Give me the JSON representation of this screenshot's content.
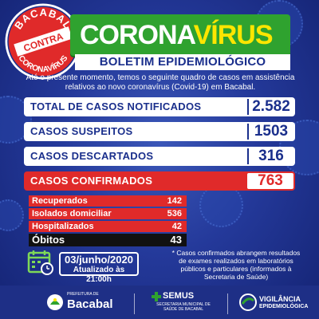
{
  "seal": {
    "top": "BACABAL",
    "middle": "CONTRA",
    "bottom": "CORONAVÍRUS"
  },
  "header": {
    "title_part1": "CORONA",
    "title_part2": "VÍRUS",
    "subtitle": "BOLETIM EPIDEMIOLÓGICO"
  },
  "intro": "Até o presente momento, temos o seguinte quadro de casos em assistência relativos ao novo coronavírus (Covid-19) em Bacabal.",
  "stats": [
    {
      "label": "TOTAL DE CASOS NOTIFICADOS",
      "value": "2.582"
    },
    {
      "label": "CASOS SUSPEITOS",
      "value": "1503"
    },
    {
      "label": "CASOS DESCARTADOS",
      "value": "316"
    },
    {
      "label": "CASOS CONFIRMADOS",
      "value": "763"
    }
  ],
  "breakdown": [
    {
      "label": "Recuperados",
      "value": "142"
    },
    {
      "label": "Isolados domiciliar",
      "value": "536"
    },
    {
      "label": "Hospitalizados",
      "value": "42"
    },
    {
      "label": "Óbitos",
      "value": "43"
    }
  ],
  "date": {
    "date": "03/junho/2020",
    "updated": "Atualizado às 21:00h"
  },
  "note": "* Casos confirmados abrangem resultados de exames realizados em laboratórios públicos e particulares (informados à Secretaria de Saúde)",
  "footer": {
    "logo1_small": "PREFEITURA DE",
    "logo1_name": "Bacabal",
    "logo2_name": "SEMUS",
    "logo2_sub": "SECRETARIA MUNICIPAL DE SAÚDE DE BACABAL",
    "logo3_line1": "VIGILÂNCIA",
    "logo3_line2": "EPIDEMIOLÓGICA"
  },
  "colors": {
    "background": "#24399a",
    "banner_green": "#2fa22f",
    "accent_yellow": "#ffe600",
    "confirmed_red": "#e02a2a",
    "navy_text": "#1a2f8c"
  }
}
